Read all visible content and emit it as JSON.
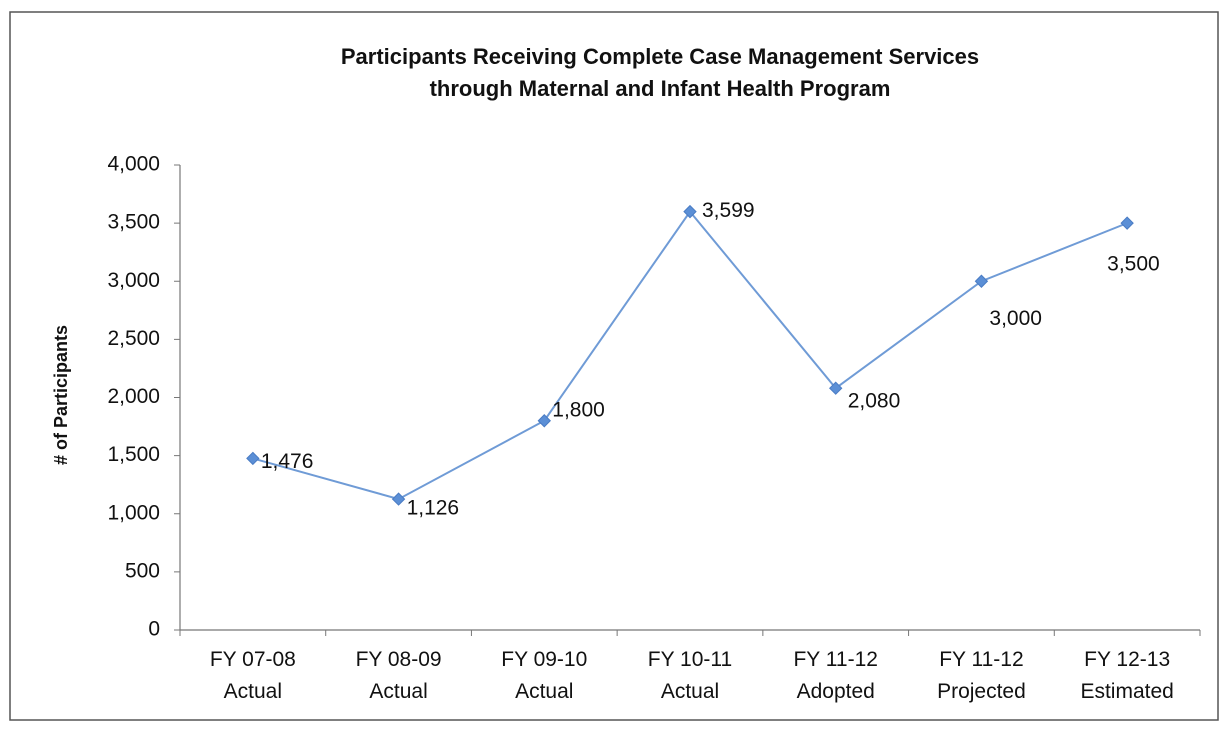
{
  "chart_data": {
    "type": "line",
    "title": [
      "Participants Receiving Complete Case Management Services",
      "through Maternal and Infant Health Program"
    ],
    "y_axis_label": "# of Participants",
    "categories": [
      "FY 07-08\nActual",
      "FY 08-09\nActual",
      "FY 09-10\nActual",
      "FY 10-11\nActual",
      "FY 11-12\nAdopted",
      "FY 11-12\nProjected",
      "FY 12-13\nEstimated"
    ],
    "series": [
      {
        "name": "Participants",
        "color": "#6f9bd6",
        "values": [
          1476,
          1126,
          1800,
          3599,
          2080,
          3000,
          3500
        ],
        "value_labels": [
          "1,476",
          "1,126",
          "1,800",
          "3,599",
          "2,080",
          "3,000",
          "3,500"
        ]
      }
    ],
    "ylim": [
      0,
      4000
    ],
    "yticks": [
      0,
      500,
      {
        "value": 1000,
        "label": "1,000"
      },
      {
        "value": 1500,
        "label": "1,500"
      },
      {
        "value": 2000,
        "label": "2,000"
      },
      {
        "value": 2500,
        "label": "2,500"
      },
      {
        "value": 3000,
        "label": "3,000"
      },
      {
        "value": 3500,
        "label": "3,500"
      },
      {
        "value": 4000,
        "label": "4,000"
      }
    ],
    "grid": false
  }
}
